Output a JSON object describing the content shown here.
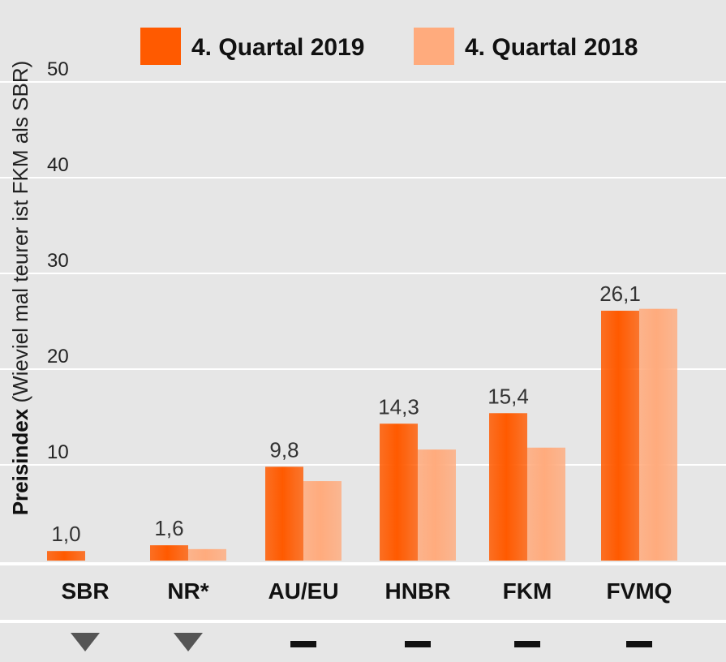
{
  "chart_data": {
    "type": "bar",
    "categories": [
      "SBR",
      "NR*",
      "AU/EU",
      "HNBR",
      "FKM",
      "FVMQ"
    ],
    "series": [
      {
        "name": "4. Quartal 2019",
        "values": [
          1.0,
          1.6,
          9.8,
          14.3,
          15.4,
          26.1
        ],
        "color": "#ff5a00"
      },
      {
        "name": "4. Quartal 2018",
        "values": [
          null,
          1.2,
          8.3,
          11.6,
          11.8,
          26.3
        ],
        "color": "#ffab7d"
      }
    ],
    "data_labels": [
      "1,0",
      "1,6",
      "9,8",
      "14,3",
      "15,4",
      "26,1"
    ],
    "ylabel_bold": "Preisindex",
    "ylabel_rest": " (Wieviel mal teurer ist FKM als SBR)",
    "ylim": [
      0,
      50
    ],
    "yticks": [
      10,
      20,
      30,
      40,
      50
    ],
    "grid": true,
    "legend_position": "top",
    "trend_indicators": [
      "down-triangle",
      "down-triangle",
      "dash",
      "dash",
      "dash",
      "dash"
    ],
    "colors": {
      "background": "#e6e6e6",
      "gridline": "#ffffff",
      "trend_icon_triangle": "#555555",
      "trend_icon_dash": "#111111"
    }
  }
}
